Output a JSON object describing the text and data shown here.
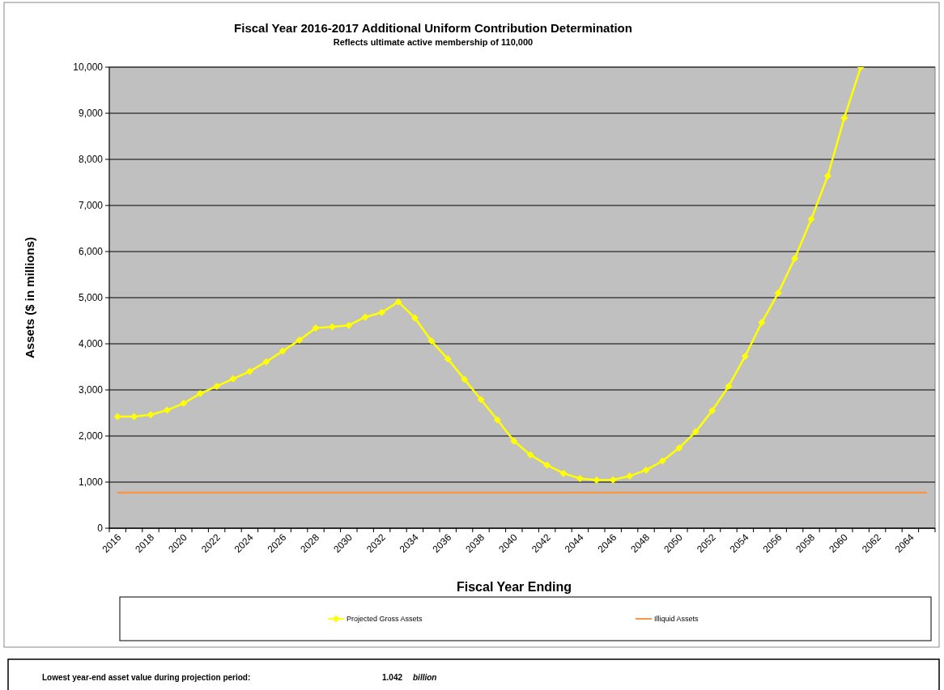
{
  "chart_data": {
    "type": "line",
    "title": "Fiscal Year 2016-2017 Additional Uniform Contribution Determination",
    "subtitle": "Reflects ultimate active membership of 110,000",
    "xlabel": "Fiscal Year Ending",
    "ylabel": "Assets ($ in millions)",
    "categories": [
      "2016",
      null,
      "2018",
      null,
      "2020",
      null,
      "2022",
      null,
      "2024",
      null,
      "2026",
      null,
      "2028",
      null,
      "2030",
      null,
      "2032",
      null,
      "2034",
      null,
      "2036",
      null,
      "2038",
      null,
      "2040",
      null,
      "2042",
      null,
      "2044",
      null,
      "2046",
      null,
      "2048",
      null,
      "2050",
      null,
      "2052",
      null,
      "2054",
      null,
      "2056",
      null,
      "2058",
      null,
      "2060",
      null,
      "2062",
      null,
      "2064",
      null
    ],
    "series": [
      {
        "name": "Projected Gross Assets",
        "color": "#ffff00",
        "marker": "diamond",
        "values": [
          2420,
          2420,
          2460,
          2560,
          2710,
          2920,
          3080,
          3240,
          3400,
          3610,
          3840,
          4080,
          4340,
          4370,
          4400,
          4580,
          4680,
          4910,
          4560,
          4060,
          3670,
          3230,
          2790,
          2350,
          1890,
          1590,
          1370,
          1190,
          1080,
          1042,
          1050,
          1130,
          1260,
          1460,
          1740,
          2090,
          2550,
          3080,
          3730,
          4460,
          5100,
          5850,
          6700,
          7640,
          8900,
          10000,
          null,
          null,
          null,
          null
        ]
      },
      {
        "name": "Illiquid Assets",
        "color": "#f79646",
        "marker": "none",
        "values": [
          770,
          770,
          770,
          770,
          770,
          770,
          770,
          770,
          770,
          770,
          770,
          770,
          770,
          770,
          770,
          770,
          770,
          770,
          770,
          770,
          770,
          770,
          770,
          770,
          770,
          770,
          770,
          770,
          770,
          770,
          770,
          770,
          770,
          770,
          770,
          770,
          770,
          770,
          770,
          770,
          770,
          770,
          770,
          770,
          770,
          770,
          770,
          770,
          770,
          770
        ]
      }
    ],
    "ylim": [
      0,
      10000
    ],
    "yticks": [
      {
        "value": 0,
        "label": "0"
      },
      {
        "value": 1000,
        "label": "1,000"
      },
      {
        "value": 2000,
        "label": "2,000"
      },
      {
        "value": 3000,
        "label": "3,000"
      },
      {
        "value": 4000,
        "label": "4,000"
      },
      {
        "value": 5000,
        "label": "5,000"
      },
      {
        "value": 6000,
        "label": "6,000"
      },
      {
        "value": 7000,
        "label": "7,000"
      },
      {
        "value": 8000,
        "label": "8,000"
      },
      {
        "value": 9000,
        "label": "9,000"
      },
      {
        "value": 10000,
        "label": "10,000"
      }
    ],
    "grid": "y",
    "legend": "bottom",
    "annotations": [
      "Lowest year-end asset value during projection period:",
      "1.042",
      "billion"
    ]
  }
}
